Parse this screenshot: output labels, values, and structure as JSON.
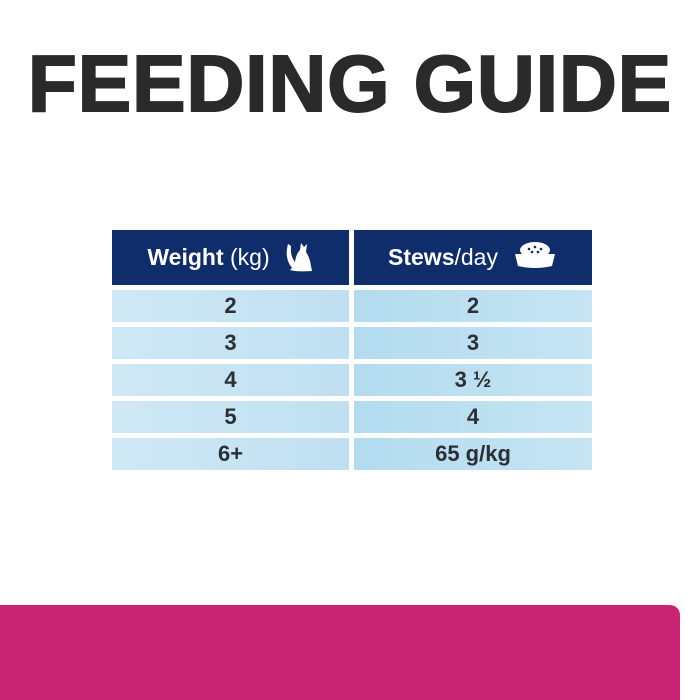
{
  "title": "FEEDING GUIDE",
  "table": {
    "headers": [
      {
        "bold": "Weight",
        "light": " (kg)",
        "icon": "cat-icon"
      },
      {
        "bold": "Stews",
        "light": "/day",
        "icon": "food-bowl-icon"
      }
    ],
    "rows": [
      [
        "2",
        "2"
      ],
      [
        "3",
        "3"
      ],
      [
        "4",
        "3 ½"
      ],
      [
        "5",
        "4"
      ],
      [
        "6+",
        "65 g/kg"
      ]
    ]
  },
  "colors": {
    "header": "#0f2d6b",
    "accent_bar": "#ca2474",
    "title": "#2a2a2a"
  }
}
